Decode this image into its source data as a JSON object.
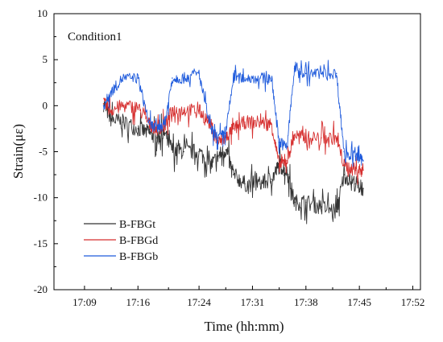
{
  "chart_data": {
    "type": "line",
    "annotation": "Condition1",
    "xlabel": "Time (hh:mm)",
    "ylabel": "Strain(με)",
    "x_ticks": [
      "17:09",
      "17:16",
      "17:24",
      "17:31",
      "17:38",
      "17:45",
      "17:52"
    ],
    "y_ticks": [
      "10",
      "5",
      "0",
      "-5",
      "-10",
      "-15",
      "-20"
    ],
    "ylim": [
      -20,
      10
    ],
    "xlim": [
      "17:05",
      "17:53"
    ],
    "grid": false,
    "legend_position": "bottom-left",
    "x": [
      "17:11:30",
      "17:12:30",
      "17:14:00",
      "17:16:00",
      "17:17:30",
      "17:18:30",
      "17:19:30",
      "17:20:30",
      "17:22:00",
      "17:24:00",
      "17:25:30",
      "17:26:30",
      "17:27:30",
      "17:28:30",
      "17:30:00",
      "17:32:00",
      "17:33:30",
      "17:34:30",
      "17:35:30",
      "17:36:30",
      "17:38:00",
      "17:40:00",
      "17:42:00",
      "17:43:00",
      "17:44:30",
      "17:45:30"
    ],
    "series": [
      {
        "name": "B-FBGt",
        "color": "#333333",
        "values": [
          0.2,
          -1.5,
          -1.8,
          -2.5,
          -3.0,
          -3.5,
          -3.0,
          -4.8,
          -5.0,
          -5.0,
          -6.5,
          -5.5,
          -4.8,
          -7.5,
          -8.5,
          -8.5,
          -8.0,
          -6.5,
          -7.0,
          -10.5,
          -10.5,
          -11.0,
          -11.5,
          -7.5,
          -8.5,
          -9.0
        ]
      },
      {
        "name": "B-FBGd",
        "color": "#d62f2f",
        "values": [
          0.2,
          -0.5,
          0.0,
          -0.2,
          -2.0,
          -2.5,
          -2.2,
          -0.5,
          -0.5,
          -0.5,
          -2.0,
          -4.0,
          -3.5,
          -2.5,
          -1.8,
          -1.8,
          -2.0,
          -6.5,
          -6.0,
          -3.2,
          -3.5,
          -3.5,
          -3.5,
          -6.5,
          -7.0,
          -7.0
        ]
      },
      {
        "name": "B-FBGb",
        "color": "#1f5bdc",
        "values": [
          0.0,
          1.5,
          3.0,
          3.0,
          -2.0,
          -2.5,
          -2.0,
          3.0,
          3.0,
          3.5,
          -2.5,
          -3.5,
          -3.0,
          3.0,
          3.0,
          3.0,
          3.0,
          -4.0,
          -4.5,
          4.0,
          3.5,
          3.5,
          3.5,
          -5.0,
          -5.5,
          -6.0
        ]
      }
    ]
  }
}
